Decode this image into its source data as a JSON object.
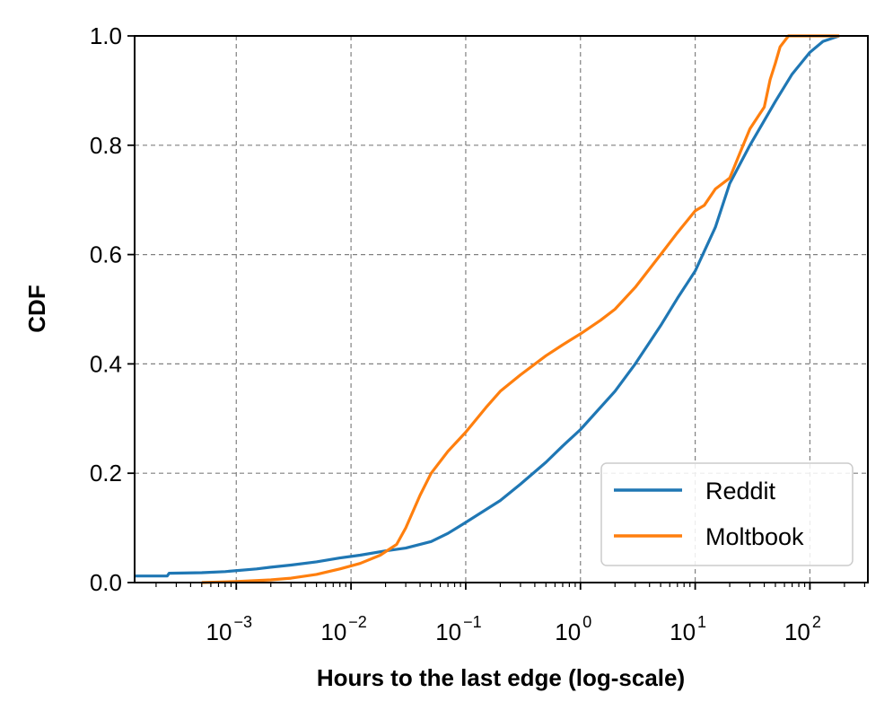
{
  "chart_data": {
    "type": "line",
    "title": "",
    "xlabel": "Hours to the last edge (log-scale)",
    "ylabel": "CDF",
    "x_scale": "log",
    "xlim": [
      0.00013,
      320
    ],
    "ylim": [
      0.0,
      1.0
    ],
    "grid": true,
    "legend_position": "bottom-right",
    "x_ticks": [
      {
        "base": "10",
        "exp": "−3",
        "value": 0.001
      },
      {
        "base": "10",
        "exp": "−2",
        "value": 0.01
      },
      {
        "base": "10",
        "exp": "−1",
        "value": 0.1
      },
      {
        "base": "10",
        "exp": "0",
        "value": 1
      },
      {
        "base": "10",
        "exp": "1",
        "value": 10
      },
      {
        "base": "10",
        "exp": "2",
        "value": 100
      }
    ],
    "y_ticks": [
      {
        "label": "0.0",
        "value": 0.0
      },
      {
        "label": "0.2",
        "value": 0.2
      },
      {
        "label": "0.4",
        "value": 0.4
      },
      {
        "label": "0.6",
        "value": 0.6
      },
      {
        "label": "0.8",
        "value": 0.8
      },
      {
        "label": "1.0",
        "value": 1.0
      }
    ],
    "series": [
      {
        "name": "Reddit",
        "color": "#1f77b4",
        "points": [
          [
            0.00013,
            0.012
          ],
          [
            0.00025,
            0.012
          ],
          [
            0.00026,
            0.017
          ],
          [
            0.0005,
            0.018
          ],
          [
            0.0008,
            0.02
          ],
          [
            0.0015,
            0.025
          ],
          [
            0.002,
            0.028
          ],
          [
            0.003,
            0.032
          ],
          [
            0.005,
            0.038
          ],
          [
            0.008,
            0.045
          ],
          [
            0.012,
            0.05
          ],
          [
            0.02,
            0.058
          ],
          [
            0.03,
            0.063
          ],
          [
            0.05,
            0.075
          ],
          [
            0.07,
            0.09
          ],
          [
            0.1,
            0.11
          ],
          [
            0.2,
            0.15
          ],
          [
            0.3,
            0.18
          ],
          [
            0.5,
            0.22
          ],
          [
            0.7,
            0.25
          ],
          [
            1.0,
            0.28
          ],
          [
            2.0,
            0.35
          ],
          [
            3.0,
            0.4
          ],
          [
            5.0,
            0.47
          ],
          [
            7.0,
            0.52
          ],
          [
            10.0,
            0.57
          ],
          [
            15.0,
            0.65
          ],
          [
            20.0,
            0.73
          ],
          [
            30.0,
            0.8
          ],
          [
            50.0,
            0.88
          ],
          [
            70.0,
            0.93
          ],
          [
            100.0,
            0.97
          ],
          [
            130.0,
            0.99
          ],
          [
            180.0,
            1.0
          ]
        ]
      },
      {
        "name": "Moltbook",
        "color": "#ff7f0e",
        "points": [
          [
            0.0005,
            0.0
          ],
          [
            0.001,
            0.002
          ],
          [
            0.002,
            0.005
          ],
          [
            0.003,
            0.008
          ],
          [
            0.005,
            0.015
          ],
          [
            0.008,
            0.025
          ],
          [
            0.012,
            0.035
          ],
          [
            0.018,
            0.05
          ],
          [
            0.025,
            0.07
          ],
          [
            0.03,
            0.1
          ],
          [
            0.04,
            0.16
          ],
          [
            0.05,
            0.2
          ],
          [
            0.07,
            0.24
          ],
          [
            0.1,
            0.275
          ],
          [
            0.15,
            0.32
          ],
          [
            0.2,
            0.35
          ],
          [
            0.3,
            0.38
          ],
          [
            0.5,
            0.415
          ],
          [
            0.7,
            0.435
          ],
          [
            1.0,
            0.455
          ],
          [
            1.5,
            0.48
          ],
          [
            2.0,
            0.5
          ],
          [
            3.0,
            0.54
          ],
          [
            5.0,
            0.6
          ],
          [
            7.0,
            0.64
          ],
          [
            10.0,
            0.68
          ],
          [
            12.0,
            0.69
          ],
          [
            15.0,
            0.72
          ],
          [
            20.0,
            0.74
          ],
          [
            25.0,
            0.79
          ],
          [
            30.0,
            0.83
          ],
          [
            40.0,
            0.87
          ],
          [
            45.0,
            0.92
          ],
          [
            50.0,
            0.95
          ],
          [
            55.0,
            0.98
          ],
          [
            65.0,
            1.0
          ],
          [
            180.0,
            1.0
          ]
        ]
      }
    ]
  }
}
